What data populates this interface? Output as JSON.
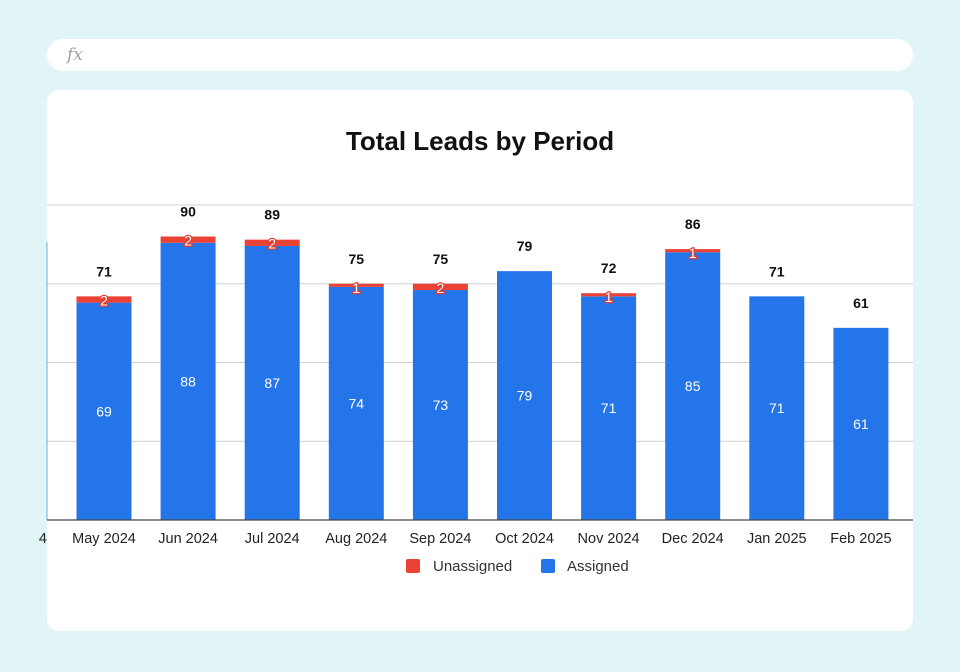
{
  "formula_bar": {
    "fx_label": "fx"
  },
  "chart_data": {
    "type": "bar",
    "stacked": true,
    "title": "Total Leads by Period",
    "categories": [
      "May 2024",
      "Jun 2024",
      "Jul 2024",
      "Aug 2024",
      "Sep 2024",
      "Oct 2024",
      "Nov 2024",
      "Dec 2024",
      "Jan 2025",
      "Feb 2025"
    ],
    "series": [
      {
        "name": "Assigned",
        "color": "#2474ea",
        "values": [
          69,
          88,
          87,
          74,
          73,
          79,
          71,
          85,
          71,
          61
        ]
      },
      {
        "name": "Unassigned",
        "color": "#ea4335",
        "values": [
          2,
          2,
          2,
          1,
          2,
          0,
          1,
          1,
          0,
          0
        ]
      }
    ],
    "totals": [
      71,
      90,
      89,
      75,
      75,
      79,
      72,
      86,
      71,
      61
    ],
    "ylim": [
      0,
      100
    ],
    "gridlines": [
      0,
      25,
      50,
      75,
      100
    ],
    "grid": true,
    "legend": {
      "position": "bottom",
      "entries": [
        "Unassigned",
        "Assigned"
      ]
    },
    "cut_off_left_tick": "4"
  }
}
